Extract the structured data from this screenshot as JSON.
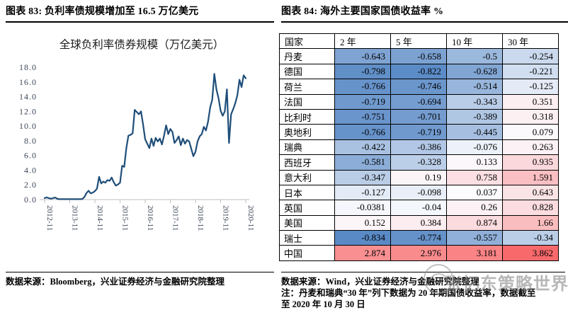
{
  "page": {
    "watermark_text": "张忆东策略世界"
  },
  "left_panel": {
    "figure_title": "图表 83: 负利率债规模增加至 16.5 万亿美元",
    "source": "数据来源：Bloomberg，兴业证券经济与金融研究院整理"
  },
  "right_panel": {
    "figure_title": "图表 84: 海外主要国家国债收益率 %",
    "source": "数据来源：Wind，兴业证券经济与金融研究院整理",
    "note_line1": "注：丹麦和瑞典“30 年”列下数据为 20 年期国债收益率，数据截至",
    "note_line2": "至 2020 年 10 月 30 日",
    "table": {
      "headers": [
        "国家",
        "2 年",
        "5 年",
        "10 年",
        "30 年"
      ],
      "rows": [
        {
          "country": "丹麦",
          "values": [
            -0.643,
            -0.658,
            -0.5,
            -0.254
          ]
        },
        {
          "country": "德国",
          "values": [
            -0.798,
            -0.822,
            -0.628,
            -0.221
          ]
        },
        {
          "country": "荷兰",
          "values": [
            -0.766,
            -0.746,
            -0.514,
            -0.125
          ]
        },
        {
          "country": "法国",
          "values": [
            -0.719,
            -0.694,
            -0.343,
            0.351
          ]
        },
        {
          "country": "比利时",
          "values": [
            -0.751,
            -0.701,
            -0.389,
            0.318
          ]
        },
        {
          "country": "奥地利",
          "values": [
            -0.766,
            -0.719,
            -0.445,
            0.079
          ]
        },
        {
          "country": "瑞典",
          "values": [
            -0.422,
            -0.386,
            -0.076,
            0.263
          ]
        },
        {
          "country": "西班牙",
          "values": [
            -0.581,
            -0.328,
            0.133,
            0.935
          ]
        },
        {
          "country": "意大利",
          "values": [
            -0.347,
            0.19,
            0.758,
            1.591
          ]
        },
        {
          "country": "日本",
          "values": [
            -0.127,
            -0.098,
            0.037,
            0.643
          ]
        },
        {
          "country": "英国",
          "values": [
            -0.0381,
            -0.04,
            0.26,
            0.828
          ]
        },
        {
          "country": "美国",
          "values": [
            0.152,
            0.384,
            0.874,
            1.66
          ]
        },
        {
          "country": "瑞士",
          "values": [
            -0.834,
            -0.774,
            -0.557,
            -0.34
          ]
        },
        {
          "country": "中国",
          "values": [
            2.874,
            2.976,
            3.181,
            3.862
          ]
        }
      ],
      "colorscale": {
        "min": -0.834,
        "mid": 0,
        "max": 3.862,
        "min_color": "#5A8AC6",
        "mid_color": "#FCFCFF",
        "max_color": "#F8696B"
      }
    }
  },
  "chart_data": {
    "type": "line",
    "title": "全球负利率债券规模（万亿美元）",
    "xlabel": "",
    "ylabel": "",
    "ylim": [
      0,
      18
    ],
    "y_tick_labels": [
      "18.0",
      "16.0",
      "14.0",
      "12.0",
      "10.0",
      "8.0",
      "6.0",
      "4.0",
      "2.0",
      "0.0"
    ],
    "x_tick_labels": [
      "2012-11",
      "2013-11",
      "2014-11",
      "2015-11",
      "2016-11",
      "2017-11",
      "2018-11",
      "2019-11",
      "2020-11"
    ],
    "grid": false,
    "legend": "none",
    "line_color": "#1F4E79",
    "axis_color": "#BFBFBF",
    "label_color": "#3D4758",
    "x": [
      "2012-11",
      "2012-12",
      "2013-01",
      "2013-02",
      "2013-03",
      "2013-04",
      "2013-05",
      "2013-06",
      "2013-07",
      "2013-08",
      "2013-09",
      "2013-10",
      "2013-11",
      "2013-12",
      "2014-01",
      "2014-02",
      "2014-03",
      "2014-04",
      "2014-05",
      "2014-06",
      "2014-07",
      "2014-08",
      "2014-09",
      "2014-10",
      "2014-11",
      "2014-12",
      "2015-01",
      "2015-02",
      "2015-03",
      "2015-04",
      "2015-05",
      "2015-06",
      "2015-07",
      "2015-08",
      "2015-09",
      "2015-10",
      "2015-11",
      "2015-12",
      "2016-01",
      "2016-02",
      "2016-03",
      "2016-04",
      "2016-05",
      "2016-06",
      "2016-07",
      "2016-08",
      "2016-09",
      "2016-10",
      "2016-11",
      "2016-12",
      "2017-01",
      "2017-02",
      "2017-03",
      "2017-04",
      "2017-05",
      "2017-06",
      "2017-07",
      "2017-08",
      "2017-09",
      "2017-10",
      "2017-11",
      "2017-12",
      "2018-01",
      "2018-02",
      "2018-03",
      "2018-04",
      "2018-05",
      "2018-06",
      "2018-07",
      "2018-08",
      "2018-09",
      "2018-10",
      "2018-11",
      "2018-12",
      "2019-01",
      "2019-02",
      "2019-03",
      "2019-04",
      "2019-05",
      "2019-06",
      "2019-07",
      "2019-08",
      "2019-09",
      "2019-10",
      "2019-11",
      "2019-12",
      "2020-01",
      "2020-02",
      "2020-03",
      "2020-04",
      "2020-05",
      "2020-06",
      "2020-07",
      "2020-08",
      "2020-09",
      "2020-10",
      "2020-11"
    ],
    "values": [
      0.2,
      0.3,
      0.2,
      0.12,
      0.2,
      0.28,
      0.12,
      0.06,
      0.06,
      0.06,
      0.06,
      0.06,
      0.06,
      0.06,
      0.06,
      0.06,
      0.06,
      0.06,
      0.08,
      0.35,
      0.9,
      1.2,
      0.85,
      0.95,
      1.15,
      1.5,
      3.1,
      2.2,
      2.45,
      2.3,
      2.65,
      2.55,
      3.0,
      2.35,
      1.9,
      2.05,
      2.3,
      4.6,
      4.45,
      7.0,
      8.7,
      8.8,
      9.0,
      12.2,
      11.9,
      11.6,
      12.0,
      10.2,
      8.2,
      7.6,
      7.0,
      8.3,
      7.3,
      8.4,
      7.9,
      8.3,
      7.5,
      8.7,
      10.1,
      8.9,
      9.6,
      9.2,
      7.7,
      8.1,
      8.6,
      7.4,
      8.3,
      7.6,
      8.1,
      7.9,
      6.9,
      5.9,
      6.5,
      7.9,
      8.6,
      8.9,
      9.9,
      9.4,
      10.6,
      12.5,
      13.6,
      17.1,
      15.0,
      13.8,
      12.1,
      11.4,
      12.0,
      15.0,
      7.7,
      11.6,
      12.3,
      13.1,
      14.2,
      16.3,
      15.3,
      16.9,
      16.5
    ]
  }
}
